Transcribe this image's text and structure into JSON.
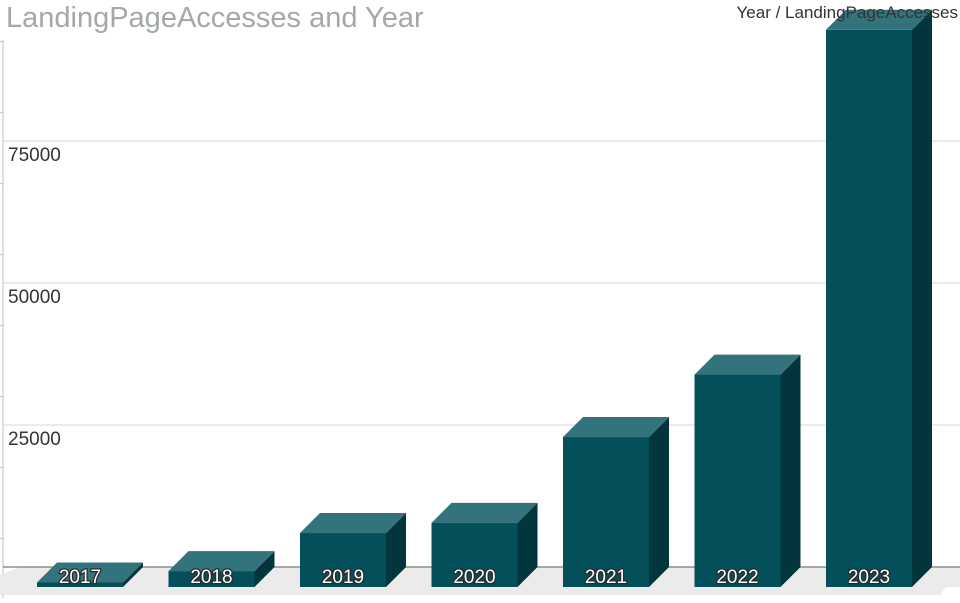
{
  "chart_data": {
    "type": "bar",
    "title": "LandingPageAccesses and Year",
    "legend": "Year / LandingPageAccesses",
    "legend_position": "top-right",
    "categories": [
      "2017",
      "2018",
      "2019",
      "2020",
      "2021",
      "2022",
      "2023"
    ],
    "series": [
      {
        "name": "LandingPageAccesses",
        "values": [
          800,
          2800,
          9500,
          11300,
          26400,
          37400,
          98100
        ]
      }
    ],
    "y_ticks": [
      "25000",
      "50000",
      "75000"
    ],
    "ylim": [
      0,
      100000
    ],
    "grid": true,
    "colors": {
      "front": "#03505a",
      "top": "#33737b",
      "side": "#02353c",
      "floor": "#ebebeb",
      "grid": "#d4d4d4"
    }
  }
}
